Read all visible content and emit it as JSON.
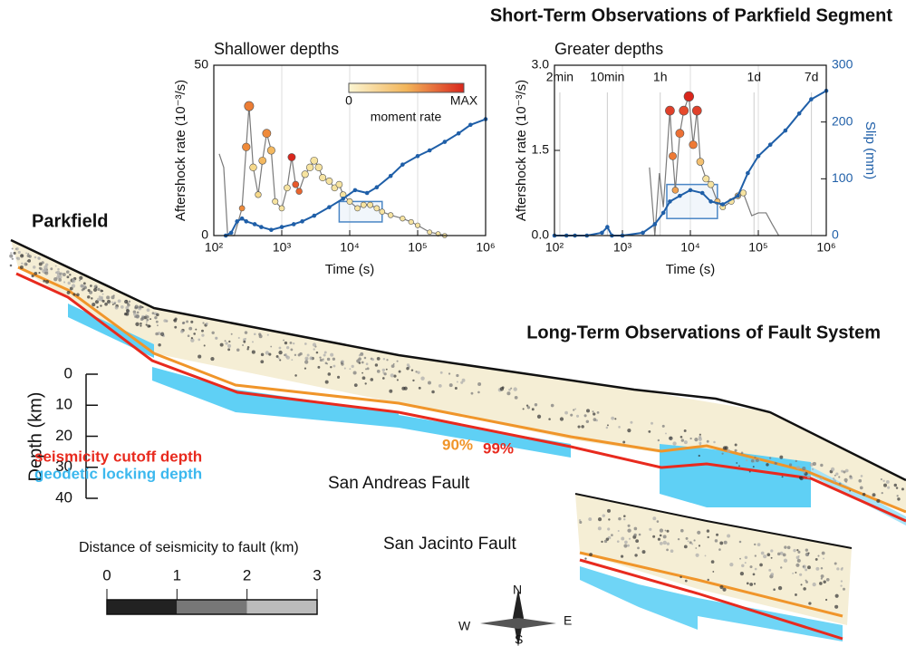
{
  "title": "Short-Term Observations of Parkfield Segment",
  "chart_data": [
    {
      "type": "line",
      "title": "Shallower depths",
      "xlabel": "Time (s)",
      "ylabel": "Aftershock rate (10⁻³/s)",
      "xscale": "log",
      "xlim": [
        100,
        1000000
      ],
      "xticks": [
        {
          "value": 100,
          "label": "10²"
        },
        {
          "value": 1000,
          "label": "10³"
        },
        {
          "value": 10000,
          "label": "10⁴"
        },
        {
          "value": 100000,
          "label": "10⁵"
        },
        {
          "value": 1000000,
          "label": "10⁶"
        }
      ],
      "ylim": [
        0,
        50
      ],
      "yticks": [
        0,
        50
      ],
      "y2lim": [
        0,
        300
      ],
      "grid": "x",
      "series": [
        {
          "color": "#7a7a7a",
          "x": [
            120,
            140,
            160,
            200,
            260,
            300,
            330,
            380,
            450,
            520,
            600,
            700,
            800,
            1000,
            1200,
            1400,
            1600,
            1800,
            2200,
            2600,
            3000,
            3500,
            4000,
            5000,
            6000,
            7000,
            8000,
            10000,
            13000,
            16000,
            20000,
            25000,
            30000,
            40000,
            60000,
            80000,
            100000,
            150000,
            200000,
            250000
          ],
          "values": [
            24,
            20,
            0,
            0,
            8,
            26,
            38,
            20,
            12,
            22,
            30,
            25,
            10,
            8,
            14,
            23,
            15,
            13,
            18,
            20,
            22,
            20,
            17,
            16,
            14,
            15,
            12,
            10,
            8,
            9,
            9,
            8,
            7,
            6,
            5,
            4,
            3,
            1,
            0.5,
            0
          ],
          "marker_colors": [
            null,
            null,
            null,
            null,
            "#ef8a3a",
            "#ef8a3a",
            "#ec7d35",
            "#f6d98a",
            "#f6d98a",
            "#f3b860",
            "#ef8a3a",
            "#f3b860",
            "#f6e3a0",
            "#f6e3a0",
            "#f6e3a0",
            "#d9261c",
            "#e85a2c",
            "#e8652e",
            "#f6e3a0",
            "#f6e3a0",
            "#f6e3a0",
            "#f6e3a0",
            "#f6e3a0",
            "#f6e3a0",
            "#f6e3a0",
            "#f6e3a0",
            "#f6e3a0",
            "#f6e3a0",
            "#f6e3a0",
            "#f6e3a0",
            "#f6e3a0",
            "#f6e3a0",
            "#f6e3a0",
            "#f6e3a0",
            "#f6e3a0",
            "#f6e3a0",
            "#f6e3a0",
            "#f6e3a0",
            "#f6e3a0",
            "#f6e3a0"
          ]
        },
        {
          "color": "#1f5fa8",
          "axis": "y2",
          "x": [
            150,
            180,
            220,
            260,
            300,
            400,
            500,
            700,
            1000,
            1500,
            2000,
            3000,
            5000,
            8000,
            12000,
            18000,
            25000,
            40000,
            60000,
            100000,
            150000,
            250000,
            400000,
            600000,
            1000000
          ],
          "values": [
            0,
            5,
            25,
            30,
            25,
            20,
            15,
            10,
            15,
            20,
            25,
            35,
            50,
            65,
            80,
            75,
            85,
            105,
            125,
            140,
            150,
            165,
            180,
            195,
            205
          ]
        }
      ],
      "highlight_box": {
        "xlim": [
          7000,
          30000
        ],
        "ylim": [
          4,
          10
        ]
      },
      "colorbar": {
        "min_label": "0",
        "max_label": "MAX",
        "title": "moment rate"
      }
    },
    {
      "type": "line",
      "title": "Greater depths",
      "xlabel": "Time (s)",
      "ylabel": "Aftershock rate (10⁻³/s)",
      "y2label": "Slip (mm)",
      "xscale": "log",
      "xlim": [
        100,
        1000000
      ],
      "xticks": [
        {
          "value": 100,
          "label": "10²"
        },
        {
          "value": 1000,
          "label": "10³"
        },
        {
          "value": 10000,
          "label": "10⁴"
        },
        {
          "value": 100000,
          "label": "10⁵"
        },
        {
          "value": 1000000,
          "label": "10⁶"
        }
      ],
      "ylim": [
        0,
        3
      ],
      "yticks": [
        {
          "value": 0,
          "label": "0.0"
        },
        1.5,
        {
          "value": 3,
          "label": "3.0"
        }
      ],
      "y2lim": [
        0,
        300
      ],
      "y2ticks": [
        0,
        100,
        200,
        300
      ],
      "grid": "x",
      "time_markers": [
        {
          "value": 120,
          "label": "2min"
        },
        {
          "value": 600,
          "label": "10min"
        },
        {
          "value": 3600,
          "label": "1h"
        },
        {
          "value": 86400,
          "label": "1d"
        },
        {
          "value": 604800,
          "label": "7d"
        }
      ],
      "series": [
        {
          "color": "#7a7a7a",
          "x": [
            2500,
            3000,
            3500,
            4000,
            5000,
            5500,
            6000,
            7000,
            8000,
            9500,
            11000,
            12500,
            14000,
            17000,
            20000,
            25000,
            30000,
            40000,
            50000,
            60000,
            80000,
            100000,
            130000,
            160000,
            200000
          ],
          "values": [
            1.2,
            0,
            1.1,
            0.5,
            2.2,
            1.4,
            0.8,
            1.8,
            2.2,
            2.45,
            1.6,
            2.2,
            1.3,
            1.0,
            0.9,
            0.6,
            0.5,
            0.6,
            0.7,
            0.75,
            0.35,
            0.4,
            0.4,
            0.2,
            0
          ],
          "marker_colors": [
            null,
            null,
            null,
            null,
            "#e0402a",
            "#ee7a35",
            "#f0a050",
            "#ec7035",
            "#e64a2c",
            "#d9261c",
            "#ee7a35",
            "#e0402a",
            "#f3c070",
            "#f6e3a0",
            "#f6e3a0",
            "#f3c070",
            "#f6e3a0",
            "#f6e3a0",
            "#f3c070",
            "#f6e3a0",
            null,
            null,
            null,
            null,
            null
          ]
        },
        {
          "color": "#1f5fa8",
          "axis": "y2",
          "x": [
            100,
            150,
            200,
            300,
            500,
            600,
            700,
            1000,
            2000,
            3000,
            4000,
            5000,
            7000,
            10000,
            15000,
            20000,
            30000,
            50000,
            70000,
            100000,
            150000,
            250000,
            400000,
            600000,
            1000000
          ],
          "values": [
            0,
            0,
            0,
            0,
            5,
            15,
            0,
            0,
            5,
            20,
            40,
            60,
            70,
            80,
            75,
            60,
            55,
            70,
            110,
            140,
            160,
            185,
            215,
            240,
            255
          ]
        }
      ],
      "highlight_box": {
        "xlim": [
          4500,
          25000
        ],
        "ylim": [
          0.3,
          0.9
        ]
      }
    }
  ],
  "fault_map": {
    "title": "Long-Term Observations of Fault System",
    "site": "Parkfield",
    "depth_axis": {
      "label": "Depth (km)",
      "ticks": [
        0,
        10,
        20,
        30,
        40
      ]
    },
    "legend": [
      "seismicity cutoff depth",
      "geodetic locking depth"
    ],
    "percentiles": [
      "90%",
      "99%"
    ],
    "faults": [
      "San Andreas Fault",
      "San Jacinto Fault"
    ],
    "distance_scale": {
      "label": "Distance of seismicity to fault (km)",
      "ticks": [
        0,
        1,
        2,
        3
      ]
    },
    "compass": {
      "north": "N",
      "east": "E",
      "south": "S",
      "west": "W"
    }
  }
}
